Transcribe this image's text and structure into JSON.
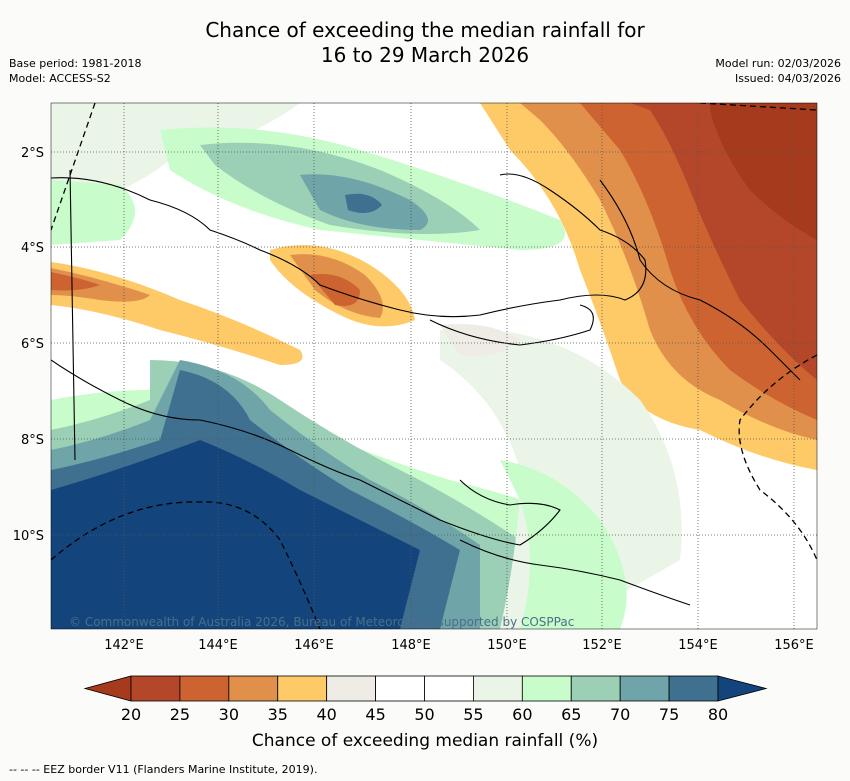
{
  "title_line1": "Chance of exceeding the median rainfall for",
  "title_line2": "16 to 29 March 2026",
  "base_period": "Base period: 1981-2018",
  "model": "Model: ACCESS-S2",
  "model_run": "Model run: 02/03/2026",
  "issued": "Issued: 04/03/2026",
  "copyright": "© Commonwealth of Australia 2026, Bureau of Meteorology, supported by COSPPac",
  "lat_labels": [
    "2°S",
    "4°S",
    "6°S",
    "8°S",
    "10°S"
  ],
  "lon_labels": [
    "142°E",
    "144°E",
    "146°E",
    "148°E",
    "150°E",
    "152°E",
    "154°E",
    "156°E"
  ],
  "colorbar": {
    "ticks": [
      "20",
      "25",
      "30",
      "35",
      "40",
      "45",
      "50",
      "55",
      "60",
      "65",
      "70",
      "75",
      "80"
    ],
    "colors": [
      "#a63a1c",
      "#b4472a",
      "#cc6331",
      "#e0904a",
      "#fdca67",
      "#efece6",
      "#ffffff",
      "#ffffff",
      "#eaf5e8",
      "#c8fcca",
      "#9bcfb6",
      "#6fa5a8",
      "#3f7090",
      "#13457c"
    ],
    "label": "Chance of exceeding median rainfall (%)"
  },
  "footnote": "--  --  -- EEZ border V11 (Flanders Marine Institute, 2019).",
  "colors": {
    "background": "#fbfcfa",
    "map_bg": "#ffffff",
    "grid": "#555555"
  }
}
